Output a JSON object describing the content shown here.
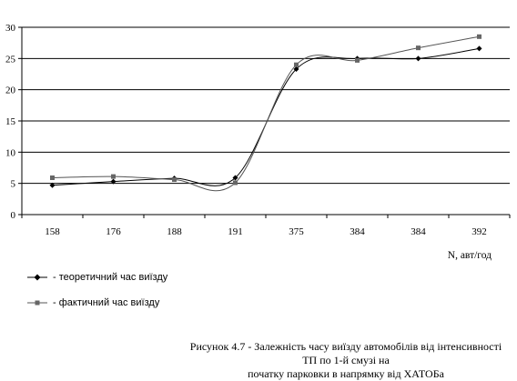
{
  "chart_data": {
    "type": "line",
    "categories": [
      "158",
      "176",
      "188",
      "191",
      "375",
      "384",
      "384",
      "392"
    ],
    "series": [
      {
        "name": "- теоретичний час виїзду",
        "marker": "diamond",
        "values": [
          4.7,
          5.3,
          5.8,
          5.9,
          23.3,
          25.0,
          25.0,
          26.6
        ]
      },
      {
        "name": "- фактичний час виїзду",
        "marker": "square",
        "values": [
          5.9,
          6.1,
          5.6,
          5.1,
          24.0,
          24.7,
          26.7,
          28.5
        ]
      }
    ],
    "xlabel": "N, авт/год",
    "ylabel": "",
    "ylim": [
      0,
      30
    ],
    "yticks": [
      0,
      5,
      10,
      15,
      20,
      25,
      30
    ],
    "grid": true,
    "legend_position": "bottom-left"
  },
  "caption_line1": "Рисунок 4.7 - Залежність часу виїзду автомобілів від інтенсивності ТП по 1-й смузі на",
  "caption_line2": "початку парковки в напрямку від ХАТОБа"
}
